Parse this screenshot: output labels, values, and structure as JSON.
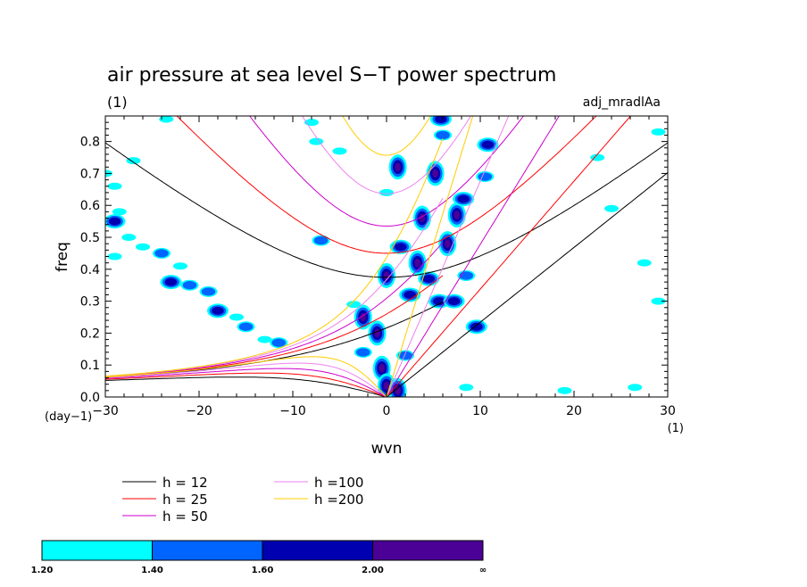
{
  "chart_data": {
    "type": "contour",
    "title": "air pressure at sea level S−T power spectrum",
    "subtitle_left": "(1)",
    "subtitle_right": "adj_mradlAa",
    "xlabel": "wvn",
    "ylabel": "freq",
    "x_unit": "(1)",
    "y_unit": "(day−1)",
    "xlim": [
      -30,
      30
    ],
    "ylim": [
      0,
      0.88
    ],
    "x_ticks": [
      {
        "v": -30,
        "label": "−30"
      },
      {
        "v": -20,
        "label": "−20"
      },
      {
        "v": -10,
        "label": "−10"
      },
      {
        "v": 0,
        "label": "0"
      },
      {
        "v": 10,
        "label": "10"
      },
      {
        "v": 20,
        "label": "20"
      },
      {
        "v": 30,
        "label": "30"
      }
    ],
    "y_ticks": [
      {
        "v": 0.0,
        "label": "0.0"
      },
      {
        "v": 0.1,
        "label": "0.1"
      },
      {
        "v": 0.2,
        "label": "0.2"
      },
      {
        "v": 0.3,
        "label": "0.3"
      },
      {
        "v": 0.4,
        "label": "0.4"
      },
      {
        "v": 0.5,
        "label": "0.5"
      },
      {
        "v": 0.6,
        "label": "0.6"
      },
      {
        "v": 0.7,
        "label": "0.7"
      },
      {
        "v": 0.8,
        "label": "0.8"
      }
    ],
    "series": [
      {
        "name": "h = 12",
        "h": 12,
        "color": "#000000"
      },
      {
        "name": "h = 25",
        "h": 25,
        "color": "#ff0000"
      },
      {
        "name": "h = 50",
        "h": 50,
        "color": "#cc00cc"
      },
      {
        "name": "h =100",
        "h": 100,
        "color": "#ee82ee"
      },
      {
        "name": "h =200",
        "h": 200,
        "color": "#ffcc00"
      }
    ],
    "color_levels": [
      {
        "from": "1.20",
        "to": "1.40",
        "color": "#00ffff"
      },
      {
        "from": "1.40",
        "to": "1.60",
        "color": "#0064ff"
      },
      {
        "from": "1.60",
        "to": "2.00",
        "color": "#0000b0"
      },
      {
        "from": "2.00",
        "to": "∞",
        "color": "#4b0096"
      }
    ],
    "colorbar_labels": [
      "1.20",
      "1.40",
      "1.60",
      "2.00",
      "∞"
    ],
    "blobs": [
      {
        "x": -30,
        "y": 0.7,
        "level": 0
      },
      {
        "x": -29,
        "y": 0.66,
        "level": 0
      },
      {
        "x": -28.5,
        "y": 0.58,
        "level": 0
      },
      {
        "x": -29,
        "y": 0.55,
        "level": 2
      },
      {
        "x": -27.5,
        "y": 0.5,
        "level": 0
      },
      {
        "x": -29,
        "y": 0.44,
        "level": 0
      },
      {
        "x": -26,
        "y": 0.47,
        "level": 0
      },
      {
        "x": -24,
        "y": 0.45,
        "level": 1
      },
      {
        "x": -22,
        "y": 0.41,
        "level": 0
      },
      {
        "x": -23,
        "y": 0.36,
        "level": 2
      },
      {
        "x": -21,
        "y": 0.35,
        "level": 1
      },
      {
        "x": -19,
        "y": 0.33,
        "level": 1
      },
      {
        "x": -18,
        "y": 0.27,
        "level": 2
      },
      {
        "x": -16,
        "y": 0.25,
        "level": 0
      },
      {
        "x": -15,
        "y": 0.22,
        "level": 1
      },
      {
        "x": -13,
        "y": 0.18,
        "level": 0
      },
      {
        "x": -11.5,
        "y": 0.17,
        "level": 1
      },
      {
        "x": -27,
        "y": 0.74,
        "level": 0
      },
      {
        "x": -23.5,
        "y": 0.87,
        "level": 0
      },
      {
        "x": -8,
        "y": 0.86,
        "level": 0
      },
      {
        "x": -7.5,
        "y": 0.8,
        "level": 0
      },
      {
        "x": -5,
        "y": 0.77,
        "level": 0
      },
      {
        "x": -7,
        "y": 0.49,
        "level": 1
      },
      {
        "x": -3.5,
        "y": 0.29,
        "level": 0
      },
      {
        "x": -2.5,
        "y": 0.25,
        "level": 3
      },
      {
        "x": -1,
        "y": 0.2,
        "level": 3
      },
      {
        "x": -2.5,
        "y": 0.14,
        "level": 1
      },
      {
        "x": -0.5,
        "y": 0.09,
        "level": 3
      },
      {
        "x": 0,
        "y": 0.035,
        "level": 3
      },
      {
        "x": 1.2,
        "y": 0.02,
        "level": 3
      },
      {
        "x": 1.2,
        "y": 0.72,
        "level": 3
      },
      {
        "x": 0,
        "y": 0.64,
        "level": 0
      },
      {
        "x": 0,
        "y": 0.38,
        "level": 3
      },
      {
        "x": 1.5,
        "y": 0.47,
        "level": 2
      },
      {
        "x": 2.5,
        "y": 0.32,
        "level": 2
      },
      {
        "x": 3.3,
        "y": 0.42,
        "level": 3
      },
      {
        "x": 3.8,
        "y": 0.56,
        "level": 3
      },
      {
        "x": 4.5,
        "y": 0.37,
        "level": 2
      },
      {
        "x": 5.6,
        "y": 0.3,
        "level": 2
      },
      {
        "x": 5.2,
        "y": 0.7,
        "level": 3
      },
      {
        "x": 6.5,
        "y": 0.48,
        "level": 3
      },
      {
        "x": 7.2,
        "y": 0.3,
        "level": 2
      },
      {
        "x": 7.5,
        "y": 0.57,
        "level": 3
      },
      {
        "x": 8.2,
        "y": 0.62,
        "level": 2
      },
      {
        "x": 8.5,
        "y": 0.38,
        "level": 1
      },
      {
        "x": 9.6,
        "y": 0.22,
        "level": 2
      },
      {
        "x": 10.8,
        "y": 0.79,
        "level": 2
      },
      {
        "x": 10.5,
        "y": 0.69,
        "level": 1
      },
      {
        "x": 6,
        "y": 0.82,
        "level": 1
      },
      {
        "x": 5.8,
        "y": 0.87,
        "level": 2
      },
      {
        "x": 2,
        "y": 0.13,
        "level": 1
      },
      {
        "x": 8.5,
        "y": 0.03,
        "level": 0
      },
      {
        "x": 19,
        "y": 0.02,
        "level": 0
      },
      {
        "x": 24,
        "y": 0.59,
        "level": 0
      },
      {
        "x": 22.5,
        "y": 0.75,
        "level": 0
      },
      {
        "x": 27.5,
        "y": 0.42,
        "level": 0
      },
      {
        "x": 29,
        "y": 0.3,
        "level": 0
      },
      {
        "x": 29,
        "y": 0.83,
        "level": 0
      },
      {
        "x": 26.5,
        "y": 0.03,
        "level": 0
      }
    ]
  }
}
